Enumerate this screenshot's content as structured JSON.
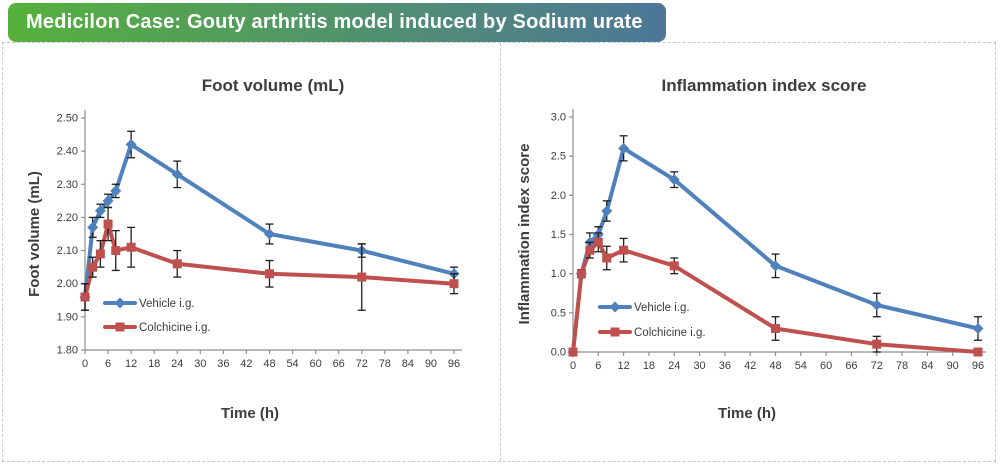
{
  "header": {
    "title": "Medicilon Case: Gouty arthritis model induced by Sodium urate",
    "gradient_from": "#55b13c",
    "gradient_to": "#4d7699"
  },
  "palette": {
    "vehicle_blue": "#4F81BD",
    "colchicine_red": "#C0504D",
    "error_bar": "#1f1f1f",
    "axis_gray": "#8f8f8f",
    "text_dark": "#3b3b3b"
  },
  "chart_data": [
    {
      "type": "line",
      "name": "foot-volume-chart",
      "title": "Foot volume (mL)",
      "ylabel": "Foot volume (mL)",
      "xlabel": "Time (h)",
      "xlim": [
        0,
        96
      ],
      "ylim": [
        1.8,
        2.5
      ],
      "xticks": [
        0,
        6,
        12,
        18,
        24,
        30,
        36,
        42,
        48,
        54,
        60,
        66,
        72,
        78,
        84,
        90,
        96
      ],
      "ytick_labels": [
        "1.80",
        "1.90",
        "2.00",
        "2.10",
        "2.20",
        "2.30",
        "2.40",
        "2.50"
      ],
      "x": [
        0,
        2,
        4,
        6,
        8,
        12,
        24,
        48,
        72,
        96
      ],
      "grid": false,
      "legend_position": "lower-left-inside",
      "series": [
        {
          "name": "Vehicle i.g.",
          "color": "#4F81BD",
          "marker": "diamond",
          "values": [
            1.96,
            2.17,
            2.22,
            2.25,
            2.28,
            2.42,
            2.33,
            2.15,
            2.1,
            2.03
          ],
          "errors": [
            0.04,
            0.03,
            0.02,
            0.02,
            0.02,
            0.04,
            0.04,
            0.03,
            0.02,
            0.02
          ]
        },
        {
          "name": "Colchicine i.g.",
          "color": "#C0504D",
          "marker": "square",
          "values": [
            1.96,
            2.05,
            2.09,
            2.18,
            2.1,
            2.11,
            2.06,
            2.03,
            2.02,
            2.0
          ],
          "errors": [
            0.04,
            0.03,
            0.04,
            0.05,
            0.06,
            0.06,
            0.04,
            0.04,
            0.1,
            0.03
          ]
        }
      ]
    },
    {
      "type": "line",
      "name": "inflammation-chart",
      "title": "Inflammation index score",
      "ylabel": "Inflammation index score",
      "xlabel": "Time (h)",
      "xlim": [
        0,
        96
      ],
      "ylim": [
        0.0,
        3.0
      ],
      "xticks": [
        0,
        6,
        12,
        18,
        24,
        30,
        36,
        42,
        48,
        54,
        60,
        66,
        72,
        78,
        84,
        90,
        96
      ],
      "ytick_labels": [
        "0.0",
        "0.5",
        "1.0",
        "1.5",
        "2.0",
        "2.5",
        "3.0"
      ],
      "x": [
        0,
        2,
        4,
        6,
        8,
        12,
        24,
        48,
        72,
        96
      ],
      "grid": false,
      "legend_position": "lower-left-inside",
      "series": [
        {
          "name": "Vehicle i.g.",
          "color": "#4F81BD",
          "marker": "diamond",
          "values": [
            0.0,
            1.0,
            1.4,
            1.5,
            1.8,
            2.6,
            2.2,
            1.1,
            0.6,
            0.3
          ],
          "errors": [
            0.0,
            0.05,
            0.12,
            0.1,
            0.13,
            0.16,
            0.1,
            0.15,
            0.15,
            0.15
          ]
        },
        {
          "name": "Colchicine i.g.",
          "color": "#C0504D",
          "marker": "square",
          "values": [
            0.0,
            1.0,
            1.3,
            1.4,
            1.2,
            1.3,
            1.1,
            0.3,
            0.1,
            0.0
          ],
          "errors": [
            0.0,
            0.05,
            0.1,
            0.12,
            0.15,
            0.15,
            0.1,
            0.15,
            0.1,
            0.02
          ]
        }
      ]
    }
  ]
}
